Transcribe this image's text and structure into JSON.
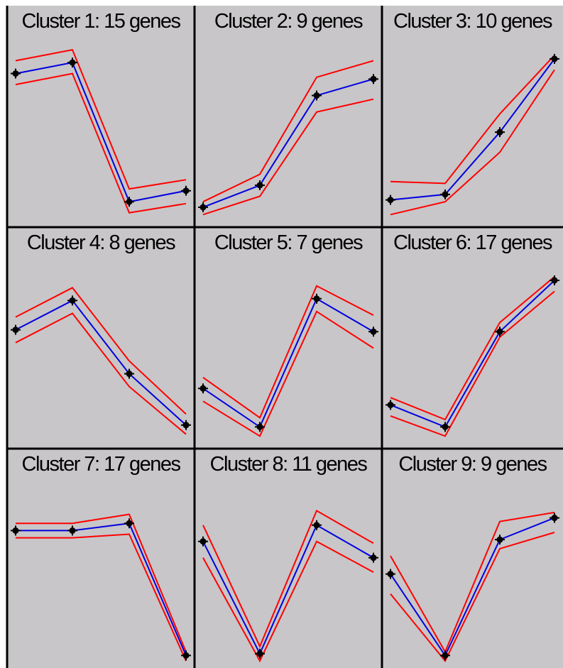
{
  "colors": {
    "background": "#c8c6c8",
    "mean_line": "#0000e0",
    "band_line": "#ff0000",
    "marker": "#000000",
    "border": "#000000"
  },
  "chart_data": [
    {
      "type": "line",
      "title": "Cluster 1: 15 genes",
      "x": [
        1,
        2,
        3,
        4
      ],
      "ylim": [
        0,
        1
      ],
      "series": [
        {
          "values": [
            0.8,
            0.86,
            0.1,
            0.16
          ]
        },
        {
          "values": [
            0.74,
            0.8,
            0.04,
            0.09
          ]
        },
        {
          "values": [
            0.87,
            0.93,
            0.17,
            0.22
          ]
        }
      ]
    },
    {
      "type": "line",
      "title": "Cluster 2: 9 genes",
      "x": [
        1,
        2,
        3,
        4
      ],
      "ylim": [
        0,
        1
      ],
      "series": [
        {
          "values": [
            0.07,
            0.19,
            0.68,
            0.77
          ]
        },
        {
          "values": [
            0.03,
            0.13,
            0.59,
            0.66
          ]
        },
        {
          "values": [
            0.1,
            0.25,
            0.78,
            0.87
          ]
        }
      ]
    },
    {
      "type": "line",
      "title": "Cluster 3: 10 genes",
      "x": [
        1,
        2,
        3,
        4
      ],
      "ylim": [
        0,
        1
      ],
      "series": [
        {
          "values": [
            0.11,
            0.14,
            0.48,
            0.88
          ]
        },
        {
          "values": [
            0.03,
            0.1,
            0.37,
            0.82
          ]
        },
        {
          "values": [
            0.21,
            0.2,
            0.58,
            0.9
          ]
        }
      ]
    },
    {
      "type": "line",
      "title": "Cluster 4: 8 genes",
      "x": [
        1,
        2,
        3,
        4
      ],
      "ylim": [
        0,
        1
      ],
      "series": [
        {
          "values": [
            0.61,
            0.77,
            0.37,
            0.09
          ]
        },
        {
          "values": [
            0.54,
            0.7,
            0.3,
            0.04
          ]
        },
        {
          "values": [
            0.68,
            0.84,
            0.44,
            0.15
          ]
        }
      ]
    },
    {
      "type": "line",
      "title": "Cluster 5: 7 genes",
      "x": [
        1,
        2,
        3,
        4
      ],
      "ylim": [
        0,
        1
      ],
      "series": [
        {
          "values": [
            0.29,
            0.08,
            0.78,
            0.6
          ]
        },
        {
          "values": [
            0.22,
            0.03,
            0.71,
            0.51
          ]
        },
        {
          "values": [
            0.35,
            0.13,
            0.85,
            0.69
          ]
        }
      ]
    },
    {
      "type": "line",
      "title": "Cluster 6: 17 genes",
      "x": [
        1,
        2,
        3,
        4
      ],
      "ylim": [
        0,
        1
      ],
      "series": [
        {
          "values": [
            0.2,
            0.08,
            0.6,
            0.88
          ]
        },
        {
          "values": [
            0.14,
            0.03,
            0.57,
            0.82
          ]
        },
        {
          "values": [
            0.24,
            0.12,
            0.65,
            0.9
          ]
        }
      ]
    },
    {
      "type": "line",
      "title": "Cluster 7: 17 genes",
      "x": [
        1,
        2,
        3,
        4
      ],
      "ylim": [
        0,
        1
      ],
      "series": [
        {
          "values": [
            0.72,
            0.72,
            0.76,
            0.03
          ]
        },
        {
          "values": [
            0.68,
            0.68,
            0.7,
            0.0
          ]
        },
        {
          "values": [
            0.76,
            0.76,
            0.81,
            0.05
          ]
        }
      ]
    },
    {
      "type": "line",
      "title": "Cluster 8: 11 genes",
      "x": [
        1,
        2,
        3,
        4
      ],
      "ylim": [
        0,
        1
      ],
      "series": [
        {
          "values": [
            0.66,
            0.04,
            0.75,
            0.57
          ]
        },
        {
          "values": [
            0.57,
            0.0,
            0.66,
            0.49
          ]
        },
        {
          "values": [
            0.75,
            0.08,
            0.83,
            0.65
          ]
        }
      ]
    },
    {
      "type": "line",
      "title": "Cluster 9: 9 genes",
      "x": [
        1,
        2,
        3,
        4
      ],
      "ylim": [
        0,
        1
      ],
      "series": [
        {
          "values": [
            0.48,
            0.03,
            0.67,
            0.79
          ]
        },
        {
          "values": [
            0.37,
            0.0,
            0.62,
            0.71
          ]
        },
        {
          "values": [
            0.58,
            0.05,
            0.77,
            0.82
          ]
        }
      ]
    }
  ]
}
